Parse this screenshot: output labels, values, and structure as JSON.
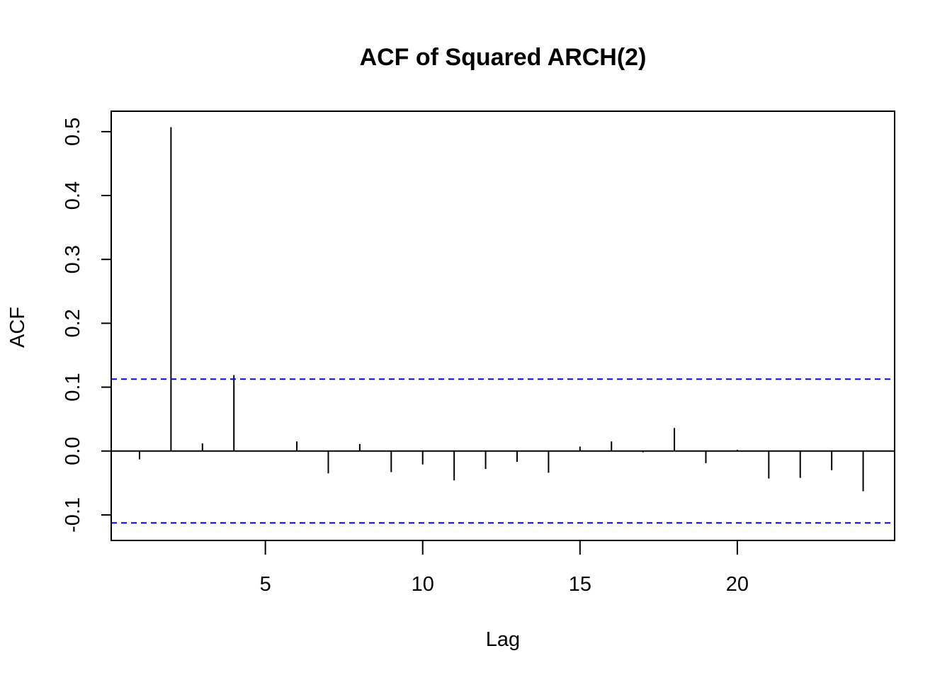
{
  "chart_data": {
    "type": "bar",
    "title": "ACF of Squared ARCH(2)",
    "xlabel": "Lag",
    "ylabel": "ACF",
    "xlim": [
      0.1,
      25
    ],
    "ylim": [
      -0.14,
      0.532
    ],
    "x_ticks": [
      5,
      10,
      15,
      20
    ],
    "y_ticks": [
      -0.1,
      0.0,
      0.1,
      0.2,
      0.3,
      0.4,
      0.5
    ],
    "y_tick_labels": [
      "-0.1",
      "0.0",
      "0.1",
      "0.2",
      "0.3",
      "0.4",
      "0.5"
    ],
    "x_tick_labels": [
      "5",
      "10",
      "15",
      "20"
    ],
    "lags": [
      1,
      2,
      3,
      4,
      5,
      6,
      7,
      8,
      9,
      10,
      11,
      12,
      13,
      14,
      15,
      16,
      17,
      18,
      19,
      20,
      21,
      22,
      23,
      24
    ],
    "values": [
      -0.013,
      0.507,
      0.012,
      0.119,
      0.0,
      0.015,
      -0.035,
      0.011,
      -0.033,
      -0.021,
      -0.046,
      -0.028,
      -0.017,
      -0.034,
      0.007,
      0.015,
      -0.002,
      0.036,
      -0.019,
      0.002,
      -0.043,
      -0.042,
      -0.03,
      -0.063
    ],
    "confidence_bound": 0.1125,
    "confidence_color": "#0000ff",
    "bar_color": "#000000",
    "grid": false
  }
}
